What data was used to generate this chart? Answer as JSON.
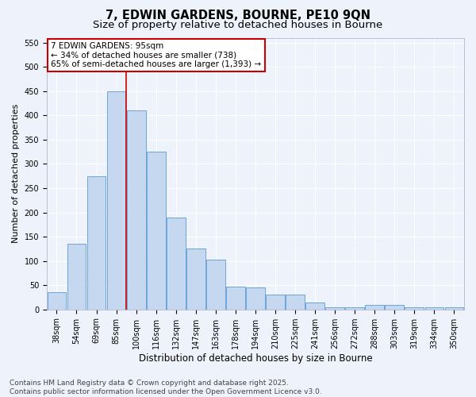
{
  "title": "7, EDWIN GARDENS, BOURNE, PE10 9QN",
  "subtitle": "Size of property relative to detached houses in Bourne",
  "xlabel": "Distribution of detached houses by size in Bourne",
  "ylabel": "Number of detached properties",
  "categories": [
    "38sqm",
    "54sqm",
    "69sqm",
    "85sqm",
    "100sqm",
    "116sqm",
    "132sqm",
    "147sqm",
    "163sqm",
    "178sqm",
    "194sqm",
    "210sqm",
    "225sqm",
    "241sqm",
    "256sqm",
    "272sqm",
    "288sqm",
    "303sqm",
    "319sqm",
    "334sqm",
    "350sqm"
  ],
  "values": [
    35,
    135,
    275,
    450,
    410,
    325,
    190,
    125,
    103,
    47,
    45,
    30,
    30,
    15,
    5,
    5,
    10,
    10,
    5,
    5,
    5
  ],
  "bar_color": "#c5d8f0",
  "bar_edge_color": "#5b9bd5",
  "vline_index": 3.5,
  "vline_color": "#cc0000",
  "annotation_text": "7 EDWIN GARDENS: 95sqm\n← 34% of detached houses are smaller (738)\n65% of semi-detached houses are larger (1,393) →",
  "annotation_box_color": "#ffffff",
  "annotation_box_edge": "#cc0000",
  "annotation_fontsize": 7.5,
  "background_color": "#eef2fb",
  "grid_color": "#ffffff",
  "ylim": [
    0,
    560
  ],
  "yticks": [
    0,
    50,
    100,
    150,
    200,
    250,
    300,
    350,
    400,
    450,
    500,
    550
  ],
  "footer_text": "Contains HM Land Registry data © Crown copyright and database right 2025.\nContains public sector information licensed under the Open Government Licence v3.0.",
  "title_fontsize": 10.5,
  "subtitle_fontsize": 9.5,
  "xlabel_fontsize": 8.5,
  "ylabel_fontsize": 8,
  "tick_fontsize": 7,
  "footer_fontsize": 6.5
}
